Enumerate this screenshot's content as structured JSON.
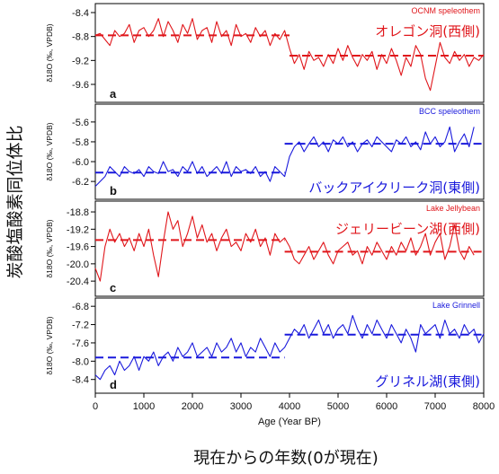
{
  "chart_data": [
    {
      "type": "line",
      "panel_letter": "a",
      "title": "OCNM speleothem",
      "label_jp": "オレゴン洞(西側)",
      "ylabel": "δ18O (‰, VPDB)",
      "ylim": [
        -9.9,
        -8.25
      ],
      "yticks": [
        "-8.4",
        "-8.8",
        "-9.2",
        "-9.6"
      ],
      "color": "#e0161b",
      "x": [
        0,
        100,
        200,
        300,
        400,
        500,
        600,
        700,
        800,
        900,
        1000,
        1100,
        1200,
        1300,
        1400,
        1500,
        1600,
        1700,
        1800,
        1900,
        2000,
        2100,
        2200,
        2300,
        2400,
        2500,
        2600,
        2700,
        2800,
        2900,
        3000,
        3100,
        3200,
        3300,
        3400,
        3500,
        3600,
        3700,
        3800,
        3900,
        4000,
        4100,
        4200,
        4300,
        4400,
        4500,
        4600,
        4700,
        4800,
        4900,
        5000,
        5100,
        5200,
        5300,
        5400,
        5500,
        5600,
        5700,
        5800,
        5900,
        6000,
        6100,
        6200,
        6300,
        6400,
        6500,
        6600,
        6700,
        6800,
        6900,
        7000,
        7100,
        7200,
        7300,
        7400,
        7500,
        7600,
        7700,
        7800,
        7900,
        8000
      ],
      "values": [
        -8.78,
        -8.75,
        -8.85,
        -8.95,
        -8.7,
        -8.8,
        -8.75,
        -8.6,
        -8.9,
        -8.7,
        -8.65,
        -8.8,
        -8.7,
        -8.5,
        -8.8,
        -8.55,
        -8.7,
        -8.9,
        -8.6,
        -8.75,
        -8.5,
        -8.85,
        -8.7,
        -8.65,
        -8.9,
        -8.55,
        -8.8,
        -8.7,
        -8.95,
        -8.6,
        -8.8,
        -8.75,
        -8.9,
        -8.65,
        -8.8,
        -8.7,
        -8.95,
        -8.75,
        -8.85,
        -8.7,
        -9.0,
        -9.25,
        -9.1,
        -9.35,
        -9.05,
        -9.2,
        -9.15,
        -9.3,
        -9.1,
        -9.25,
        -9.0,
        -9.2,
        -8.95,
        -9.15,
        -9.3,
        -9.1,
        -9.2,
        -9.05,
        -9.35,
        -9.1,
        -9.25,
        -9.0,
        -9.2,
        -9.45,
        -9.15,
        -9.3,
        -8.95,
        -9.1,
        -9.5,
        -9.7,
        -9.3,
        -8.9,
        -9.15,
        -9.25,
        -9.05,
        -9.2,
        -9.1,
        -9.3,
        -9.15,
        -9.2,
        -9.1
      ],
      "mean_segments": [
        {
          "x0": 0,
          "x1": 4000,
          "y": -8.78
        },
        {
          "x0": 4000,
          "x1": 8000,
          "y": -9.12
        }
      ]
    },
    {
      "type": "line",
      "panel_letter": "b",
      "title": "BCC speleothem",
      "label_jp": "バックアイクリーク洞(東側)",
      "ylabel": "δ18O (‰, VPDB)",
      "ylim": [
        -6.38,
        -5.42
      ],
      "yticks": [
        "-5.6",
        "-5.8",
        "-6.0",
        "-6.2"
      ],
      "color": "#1a1adc",
      "x": [
        0,
        100,
        200,
        300,
        400,
        500,
        600,
        700,
        800,
        900,
        1000,
        1100,
        1200,
        1300,
        1400,
        1500,
        1600,
        1700,
        1800,
        1900,
        2000,
        2100,
        2200,
        2300,
        2400,
        2500,
        2600,
        2700,
        2800,
        2900,
        3000,
        3100,
        3200,
        3300,
        3400,
        3500,
        3600,
        3700,
        3800,
        3900,
        4000,
        4100,
        4200,
        4300,
        4400,
        4500,
        4600,
        4700,
        4800,
        4900,
        5000,
        5100,
        5200,
        5300,
        5400,
        5500,
        5600,
        5700,
        5800,
        5900,
        6000,
        6100,
        6200,
        6300,
        6400,
        6500,
        6600,
        6700,
        6800,
        6900,
        7000,
        7100,
        7200,
        7300,
        7400,
        7500,
        7600,
        7700,
        7800
      ],
      "values": [
        -6.25,
        -6.2,
        -6.15,
        -6.05,
        -6.1,
        -6.15,
        -6.05,
        -6.1,
        -6.12,
        -6.08,
        -6.15,
        -6.05,
        -6.1,
        -6.12,
        -6.0,
        -6.1,
        -6.08,
        -6.15,
        -6.05,
        -6.1,
        -6.0,
        -6.12,
        -6.05,
        -6.15,
        -6.1,
        -6.05,
        -6.12,
        -6.0,
        -6.15,
        -6.05,
        -6.1,
        -6.08,
        -6.12,
        -6.05,
        -6.15,
        -6.1,
        -6.2,
        -6.05,
        -6.1,
        -6.15,
        -5.95,
        -5.85,
        -5.8,
        -5.9,
        -5.82,
        -5.75,
        -5.85,
        -5.8,
        -5.9,
        -5.78,
        -5.82,
        -5.75,
        -5.85,
        -5.8,
        -5.9,
        -5.82,
        -5.78,
        -5.85,
        -5.75,
        -5.8,
        -5.85,
        -5.9,
        -5.78,
        -5.82,
        -5.75,
        -5.85,
        -5.8,
        -5.88,
        -5.7,
        -5.82,
        -5.75,
        -5.85,
        -5.8,
        -5.65,
        -5.9,
        -5.8,
        -5.72,
        -5.85,
        -5.65
      ],
      "mean_segments": [
        {
          "x0": 0,
          "x1": 3900,
          "y": -6.11
        },
        {
          "x0": 3900,
          "x1": 8000,
          "y": -5.82
        }
      ]
    },
    {
      "type": "line",
      "panel_letter": "c",
      "title": "Lake Jellybean",
      "label_jp": "ジェリービーン湖(西側)",
      "ylabel": "δ18O (‰, VPDB)",
      "ylim": [
        -20.75,
        -18.55
      ],
      "yticks": [
        "-18.8",
        "-19.2",
        "-19.6",
        "-20.0",
        "-20.4"
      ],
      "color": "#e0161b",
      "x": [
        0,
        100,
        200,
        300,
        400,
        500,
        600,
        700,
        800,
        900,
        1000,
        1100,
        1200,
        1300,
        1400,
        1500,
        1600,
        1700,
        1800,
        1900,
        2000,
        2100,
        2200,
        2300,
        2400,
        2500,
        2600,
        2700,
        2800,
        2900,
        3000,
        3100,
        3200,
        3300,
        3400,
        3500,
        3600,
        3700,
        3800,
        3900,
        4000,
        4100,
        4200,
        4300,
        4400,
        4500,
        4600,
        4700,
        4800,
        4900,
        5000,
        5100,
        5200,
        5300,
        5400,
        5500,
        5600,
        5700,
        5800,
        5900,
        6000,
        6100,
        6200,
        6300,
        6400,
        6500,
        6600,
        6700,
        6800,
        6900,
        7000,
        7100,
        7200,
        7300,
        7400,
        7500,
        7600,
        7700,
        7800
      ],
      "values": [
        -20.1,
        -20.4,
        -19.6,
        -19.2,
        -19.5,
        -19.3,
        -19.6,
        -19.4,
        -19.7,
        -19.3,
        -19.6,
        -19.2,
        -19.8,
        -20.3,
        -19.5,
        -18.8,
        -19.2,
        -19.0,
        -19.6,
        -19.3,
        -18.9,
        -19.4,
        -19.1,
        -19.5,
        -19.3,
        -19.7,
        -19.4,
        -19.2,
        -19.6,
        -19.5,
        -19.7,
        -19.3,
        -19.5,
        -19.2,
        -19.6,
        -19.4,
        -19.8,
        -19.3,
        -19.5,
        -19.4,
        -19.6,
        -19.9,
        -20.0,
        -19.8,
        -19.6,
        -19.9,
        -19.7,
        -19.5,
        -19.8,
        -20.0,
        -19.7,
        -19.6,
        -19.5,
        -19.8,
        -19.7,
        -20.0,
        -19.6,
        -19.8,
        -19.5,
        -19.7,
        -19.9,
        -19.6,
        -19.8,
        -19.5,
        -19.7,
        -19.4,
        -19.8,
        -19.6,
        -19.3,
        -19.8,
        -19.5,
        -19.3,
        -19.9,
        -19.6,
        -19.1,
        -19.7,
        -19.9,
        -19.6,
        -19.8
      ],
      "mean_segments": [
        {
          "x0": 0,
          "x1": 3900,
          "y": -19.45
        },
        {
          "x0": 3900,
          "x1": 8000,
          "y": -19.72
        }
      ]
    },
    {
      "type": "line",
      "panel_letter": "d",
      "title": "Lake Grinnell",
      "label_jp": "グリネル湖(東側)",
      "ylabel": "δ18O (‰, VPDB)",
      "ylim": [
        -8.7,
        -6.62
      ],
      "yticks": [
        "-6.8",
        "-7.2",
        "-7.6",
        "-8.0",
        "-8.4"
      ],
      "color": "#1a1adc",
      "x": [
        0,
        100,
        200,
        300,
        400,
        500,
        600,
        700,
        800,
        900,
        1000,
        1100,
        1200,
        1300,
        1400,
        1500,
        1600,
        1700,
        1800,
        1900,
        2000,
        2100,
        2200,
        2300,
        2400,
        2500,
        2600,
        2700,
        2800,
        2900,
        3000,
        3100,
        3200,
        3300,
        3400,
        3500,
        3600,
        3700,
        3800,
        3900,
        4000,
        4100,
        4200,
        4300,
        4400,
        4500,
        4600,
        4700,
        4800,
        4900,
        5000,
        5100,
        5200,
        5300,
        5400,
        5500,
        5600,
        5700,
        5800,
        5900,
        6000,
        6100,
        6200,
        6300,
        6400,
        6500,
        6600,
        6700,
        6800,
        6900,
        7000,
        7100,
        7200,
        7300,
        7400,
        7500,
        7600,
        7700,
        7800,
        7900,
        8000
      ],
      "values": [
        -8.3,
        -8.4,
        -8.2,
        -8.1,
        -8.3,
        -8.0,
        -8.2,
        -8.1,
        -7.9,
        -8.2,
        -7.9,
        -8.0,
        -7.8,
        -8.1,
        -7.9,
        -7.8,
        -8.0,
        -7.7,
        -7.9,
        -7.8,
        -7.6,
        -7.9,
        -7.8,
        -7.7,
        -7.9,
        -7.6,
        -7.8,
        -7.7,
        -7.5,
        -7.8,
        -7.6,
        -7.9,
        -7.7,
        -7.8,
        -7.5,
        -7.7,
        -7.9,
        -7.6,
        -7.8,
        -7.7,
        -7.5,
        -7.3,
        -7.4,
        -7.2,
        -7.5,
        -7.3,
        -7.1,
        -7.4,
        -7.2,
        -7.5,
        -7.3,
        -7.2,
        -7.4,
        -7.0,
        -7.3,
        -7.5,
        -7.2,
        -7.4,
        -7.1,
        -7.3,
        -7.5,
        -7.2,
        -7.4,
        -7.6,
        -7.3,
        -7.5,
        -7.8,
        -7.2,
        -7.4,
        -7.3,
        -7.2,
        -7.5,
        -7.1,
        -7.4,
        -7.3,
        -7.5,
        -7.2,
        -7.4,
        -7.3,
        -7.6,
        -7.4
      ],
      "mean_segments": [
        {
          "x0": 0,
          "x1": 3900,
          "y": -7.92
        },
        {
          "x0": 3900,
          "x1": 8000,
          "y": -7.42
        }
      ]
    }
  ],
  "x_axis": {
    "label": "Age (Year BP)",
    "xlim": [
      0,
      8000
    ],
    "ticks": [
      "0",
      "1000",
      "2000",
      "3000",
      "4000",
      "5000",
      "6000",
      "7000",
      "8000"
    ]
  },
  "big_ylabel": "炭酸塩酸素同位体比",
  "big_xlabel": "現在からの年数(0が現在)"
}
